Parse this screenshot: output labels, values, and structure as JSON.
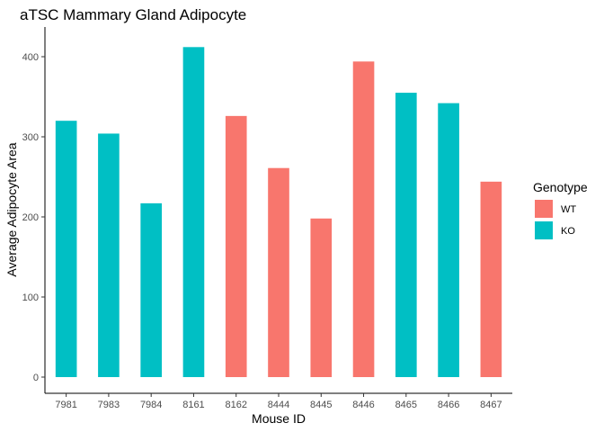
{
  "chart_data": {
    "type": "bar",
    "title": "aTSC Mammary Gland Adipocyte",
    "xlabel": "Mouse ID",
    "ylabel": "Average Adipocyte Area",
    "categories": [
      "7981",
      "7983",
      "7984",
      "8161",
      "8162",
      "8444",
      "8445",
      "8446",
      "8465",
      "8466",
      "8467"
    ],
    "values": [
      320,
      304,
      217,
      412,
      326,
      261,
      198,
      394,
      355,
      342,
      244
    ],
    "groups": [
      "KO",
      "KO",
      "KO",
      "KO",
      "WT",
      "WT",
      "WT",
      "WT",
      "KO",
      "KO",
      "WT"
    ],
    "ylim": [
      0,
      435
    ],
    "yticks": [
      0,
      100,
      200,
      300,
      400
    ],
    "grid": false,
    "legend": {
      "title": "Genotype",
      "placement": "right",
      "entries": [
        {
          "label": "WT",
          "color": "#F8766D"
        },
        {
          "label": "KO",
          "color": "#00BFC4"
        }
      ]
    }
  }
}
